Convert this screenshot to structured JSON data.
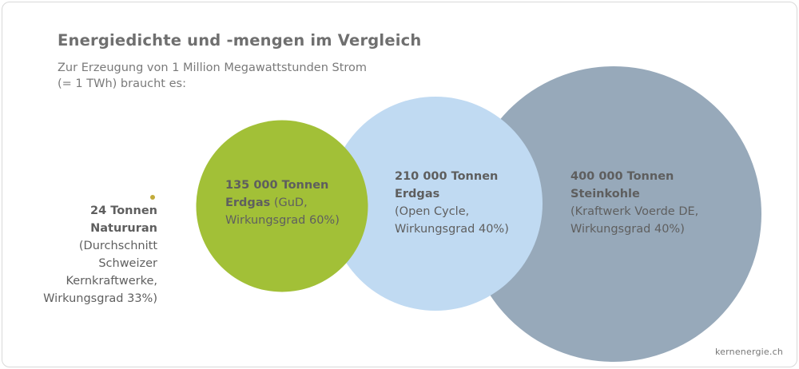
{
  "chart_data": {
    "type": "bubble",
    "title": "Energiedichte und -mengen im Vergleich",
    "subtitle_lines": [
      "Zur Erzeugung von 1 Million Megawattstunden Strom",
      "(= 1 TWh) braucht es:"
    ],
    "unit": "Tonnen",
    "series": [
      {
        "name": "Natururan",
        "value": 24,
        "color": "#c2ab3a",
        "label": {
          "amount": "24 Tonnen",
          "material": "Natururan",
          "note_lines": [
            "(Durchschnitt",
            "Schweizer",
            "Kernkraftwerke,",
            "Wirkungsgrad 33%)"
          ]
        }
      },
      {
        "name": "Erdgas (GuD)",
        "value": 135000,
        "color": "#a2c037",
        "label": {
          "amount": "135 000 Tonnen",
          "material": "Erdgas",
          "material_note": " (GuD,",
          "note_lines": [
            "Wirkungsgrad 60%)"
          ]
        }
      },
      {
        "name": "Erdgas (Open Cycle)",
        "value": 210000,
        "color": "#c0daf2",
        "label": {
          "amount": "210 000 Tonnen",
          "material": "Erdgas",
          "note_lines": [
            "(Open Cycle,",
            "Wirkungsgrad 40%)"
          ]
        }
      },
      {
        "name": "Steinkohle",
        "value": 400000,
        "color": "#97a9ba",
        "label": {
          "amount": "400 000 Tonnen",
          "material": "Steinkohle",
          "note_lines": [
            "(Kraftwerk Voerde DE,",
            "Wirkungsgrad 40%)"
          ]
        }
      }
    ]
  },
  "source": "kernenergie.ch"
}
